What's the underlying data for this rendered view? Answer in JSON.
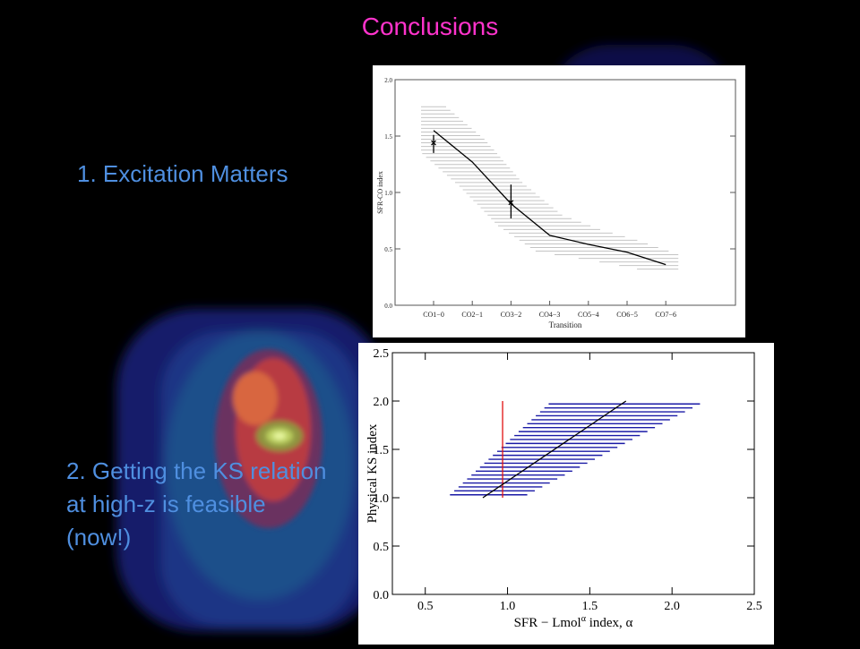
{
  "slide": {
    "title": "Conclusions",
    "bullets": [
      "1. Excitation Matters",
      "2. Getting the KS relation at high-z is feasible (now!)"
    ]
  },
  "colors": {
    "title": "#ff33cc",
    "bullets": "#4f8fe0",
    "chart2_band": "#1a1aa6",
    "chart2_marker": "#e01010"
  },
  "chart_data": [
    {
      "type": "line",
      "xlabel": "Transition",
      "ylabel": "SFR-CO index",
      "categories": [
        "CO1−0",
        "CO2−1",
        "CO3−2",
        "CO4−3",
        "CO5−4",
        "CO6−5",
        "CO7−6"
      ],
      "ylim": [
        0.0,
        2.0
      ],
      "yticks": [
        "0.0",
        "0.5",
        "1.0",
        "1.5",
        "2.0"
      ],
      "series": [
        {
          "values": [
            1.55,
            1.27,
            0.9,
            0.62,
            0.54,
            0.47,
            0.36
          ]
        }
      ],
      "band": {
        "style": "horizontal hatching (uncertainty range)",
        "lower": [
          1.35,
          1.05,
          0.7,
          0.47,
          0.42,
          0.36,
          0.29
        ],
        "upper": [
          1.76,
          1.47,
          1.08,
          0.8,
          0.67,
          0.57,
          0.45
        ]
      },
      "points": [
        {
          "x_index": 0,
          "y": 1.44,
          "yerr": [
            1.35,
            1.51
          ],
          "marker": "x"
        },
        {
          "x_index": 2,
          "y": 0.91,
          "yerr": [
            0.77,
            1.07
          ],
          "marker": "x"
        }
      ],
      "grid": false
    },
    {
      "type": "line",
      "xlabel": "SFR − Lmol",
      "xlabel_sup": "α",
      "xlabel_tail": " index, α",
      "ylabel": "Physical KS index",
      "xlim": [
        0.3,
        2.5
      ],
      "ylim": [
        0.0,
        2.5
      ],
      "xticks": [
        "0.5",
        "1.0",
        "1.5",
        "2.0",
        "2.5"
      ],
      "yticks": [
        "0.0",
        "0.5",
        "1.0",
        "1.5",
        "2.0",
        "2.5"
      ],
      "series": [
        {
          "x": [
            0.85,
            1.72
          ],
          "y": [
            1.0,
            2.0
          ]
        }
      ],
      "band": {
        "style": "horizontal blue hatching",
        "y_range": [
          1.03,
          1.97
        ],
        "x_min_at_ymin": 0.65,
        "x_min_at_ymax": 1.25,
        "x_max_at_ymin": 1.12,
        "x_max_at_ymax": 2.17
      },
      "vline": {
        "x": 0.97,
        "y": [
          1.0,
          2.0
        ],
        "color": "red"
      },
      "grid": false
    }
  ]
}
